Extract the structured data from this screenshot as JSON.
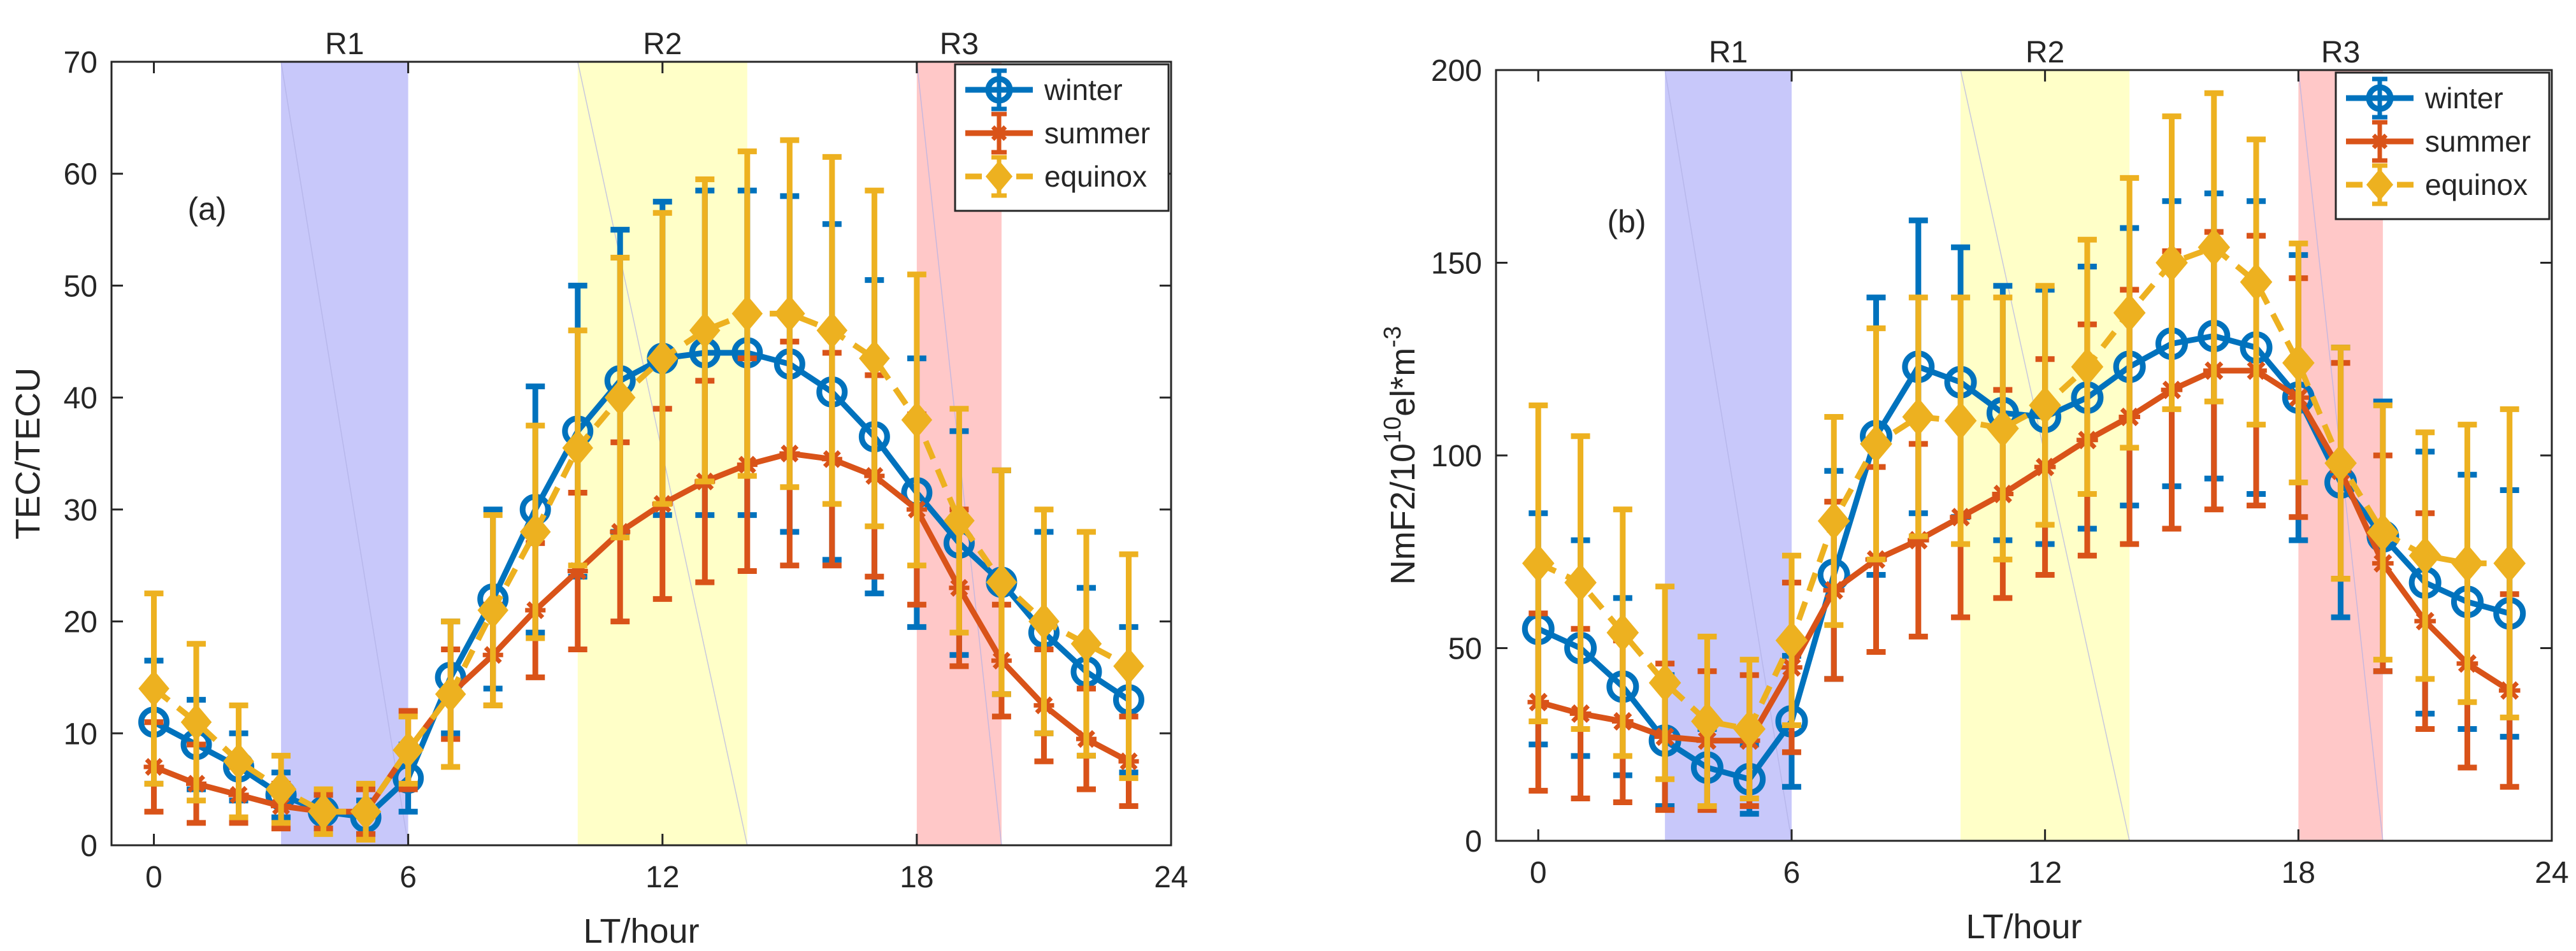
{
  "colors": {
    "winter": "#0072BD",
    "summer": "#D95319",
    "equinox": "#EDB120",
    "region1": "#C8C8FA",
    "region2": "#FFFFC8",
    "region3": "#FFC8C8",
    "axis": "#262626"
  },
  "chart_data": [
    {
      "type": "line",
      "panel_label": "(a)",
      "xlabel": "LT/hour",
      "ylabel": "TEC/TECU",
      "xlim": [
        -1,
        24
      ],
      "ylim": [
        0,
        70
      ],
      "xticks": [
        "0",
        "6",
        "12",
        "18",
        "24"
      ],
      "yticks": [
        "0",
        "10",
        "20",
        "30",
        "40",
        "50",
        "60",
        "70"
      ],
      "xtick_values": [
        0,
        6,
        12,
        18,
        24
      ],
      "ytick_values": [
        0,
        10,
        20,
        30,
        40,
        50,
        60,
        70
      ],
      "regions": [
        {
          "label": "R1",
          "x0": 3,
          "x1": 6,
          "color_key": "region1"
        },
        {
          "label": "R2",
          "x0": 10,
          "x1": 14,
          "color_key": "region2"
        },
        {
          "label": "R3",
          "x0": 18,
          "x1": 20,
          "color_key": "region3"
        }
      ],
      "legend": {
        "position": "top-right",
        "entries": [
          "winter",
          "summer",
          "equinox"
        ]
      },
      "x": [
        0,
        1,
        2,
        3,
        4,
        5,
        6,
        7,
        8,
        9,
        10,
        11,
        12,
        13,
        14,
        15,
        16,
        17,
        18,
        19,
        20,
        21,
        22,
        23
      ],
      "series": [
        {
          "name": "winter",
          "color_key": "winter",
          "marker": "circle",
          "dash": "solid",
          "values": [
            11,
            9,
            7,
            4.5,
            3,
            2.5,
            6,
            15,
            22,
            30,
            37,
            41.5,
            43.5,
            44,
            44,
            43,
            40.5,
            36.5,
            31.5,
            27,
            23.5,
            19,
            15.5,
            13
          ],
          "err": [
            5.5,
            4,
            3,
            2,
            1.5,
            1.5,
            3,
            5,
            8,
            11,
            13,
            13.5,
            14,
            14.5,
            14.5,
            15,
            15,
            14,
            12,
            10,
            10,
            9,
            7.5,
            6.5
          ]
        },
        {
          "name": "summer",
          "color_key": "summer",
          "marker": "asterisk",
          "dash": "solid",
          "values": [
            7,
            5.5,
            4.5,
            3.5,
            3,
            3,
            8.5,
            13.5,
            17,
            21,
            24.5,
            28,
            30.5,
            32.5,
            34,
            35,
            34.5,
            33,
            30,
            23,
            16.5,
            12.5,
            9.5,
            7.5
          ],
          "err": [
            4,
            3.5,
            2.5,
            2,
            1.5,
            2,
            3.5,
            4,
            4.5,
            6,
            7,
            8,
            8.5,
            9,
            9.5,
            10,
            9.5,
            9,
            8.5,
            7,
            5,
            5,
            4.5,
            4
          ]
        },
        {
          "name": "equinox",
          "color_key": "equinox",
          "marker": "diamond",
          "dash": "dashed",
          "values": [
            14,
            11,
            7.5,
            5,
            3,
            3,
            8.5,
            13.5,
            21,
            28,
            35.5,
            40,
            43.5,
            46,
            47.5,
            47.5,
            46,
            43.5,
            38,
            29,
            23.5,
            20,
            18,
            16
          ],
          "err": [
            8.5,
            7,
            5,
            3,
            2,
            2.5,
            3,
            6.5,
            8.5,
            9.5,
            10.5,
            12.5,
            13,
            13.5,
            14.5,
            15.5,
            15.5,
            15,
            13,
            10,
            10,
            10,
            10,
            10
          ]
        }
      ]
    },
    {
      "type": "line",
      "panel_label": "(b)",
      "xlabel": "LT/hour",
      "ylabel_main": "NmF2/10",
      "ylabel_exp": "10",
      "ylabel_unit": "el*m",
      "ylabel_unit_exp": "-3",
      "xlim": [
        -1,
        24
      ],
      "ylim": [
        0,
        200
      ],
      "xticks": [
        "0",
        "6",
        "12",
        "18",
        "24"
      ],
      "yticks": [
        "0",
        "50",
        "100",
        "150",
        "200"
      ],
      "xtick_values": [
        0,
        6,
        12,
        18,
        24
      ],
      "ytick_values": [
        0,
        50,
        100,
        150,
        200
      ],
      "regions": [
        {
          "label": "R1",
          "x0": 3,
          "x1": 6,
          "color_key": "region1"
        },
        {
          "label": "R2",
          "x0": 10,
          "x1": 14,
          "color_key": "region2"
        },
        {
          "label": "R3",
          "x0": 18,
          "x1": 20,
          "color_key": "region3"
        }
      ],
      "legend": {
        "position": "top-right",
        "entries": [
          "winter",
          "summer",
          "equinox"
        ]
      },
      "x": [
        0,
        1,
        2,
        3,
        4,
        5,
        6,
        7,
        8,
        9,
        10,
        11,
        12,
        13,
        14,
        15,
        16,
        17,
        18,
        19,
        20,
        21,
        22,
        23
      ],
      "series": [
        {
          "name": "winter",
          "color_key": "winter",
          "marker": "circle",
          "dash": "solid",
          "values": [
            55,
            50,
            40,
            26,
            19,
            16,
            31,
            69,
            105,
            123,
            119,
            111,
            110,
            115,
            123,
            129,
            131,
            128,
            115,
            93,
            79,
            67,
            62,
            59
          ],
          "err": [
            30,
            28,
            23,
            17,
            10,
            9,
            17,
            27,
            36,
            38,
            35,
            33,
            33,
            34,
            36,
            37,
            37,
            38,
            37,
            35,
            35,
            34,
            33,
            32
          ]
        },
        {
          "name": "summer",
          "color_key": "summer",
          "marker": "asterisk",
          "dash": "solid",
          "values": [
            36,
            33,
            31,
            27,
            26,
            26,
            45,
            65,
            73,
            78,
            84,
            90,
            97,
            104,
            110,
            117,
            122,
            122,
            115,
            96,
            72,
            57,
            46,
            39
          ],
          "err": [
            23,
            22,
            21,
            19,
            18,
            17,
            22,
            23,
            24,
            25,
            26,
            27,
            28,
            30,
            33,
            36,
            36,
            35,
            31,
            28,
            28,
            28,
            27,
            25
          ]
        },
        {
          "name": "equinox",
          "color_key": "equinox",
          "marker": "diamond",
          "dash": "dashed",
          "values": [
            72,
            67,
            54,
            41,
            31,
            29,
            52,
            83,
            103,
            110,
            109,
            107,
            113,
            123,
            137,
            150,
            154,
            145,
            124,
            98,
            80,
            74,
            72,
            72
          ],
          "err": [
            41,
            38,
            32,
            25,
            22,
            18,
            22,
            27,
            30,
            31,
            32,
            34,
            31,
            33,
            35,
            38,
            40,
            37,
            31,
            30,
            33,
            32,
            36,
            40
          ]
        }
      ]
    }
  ]
}
